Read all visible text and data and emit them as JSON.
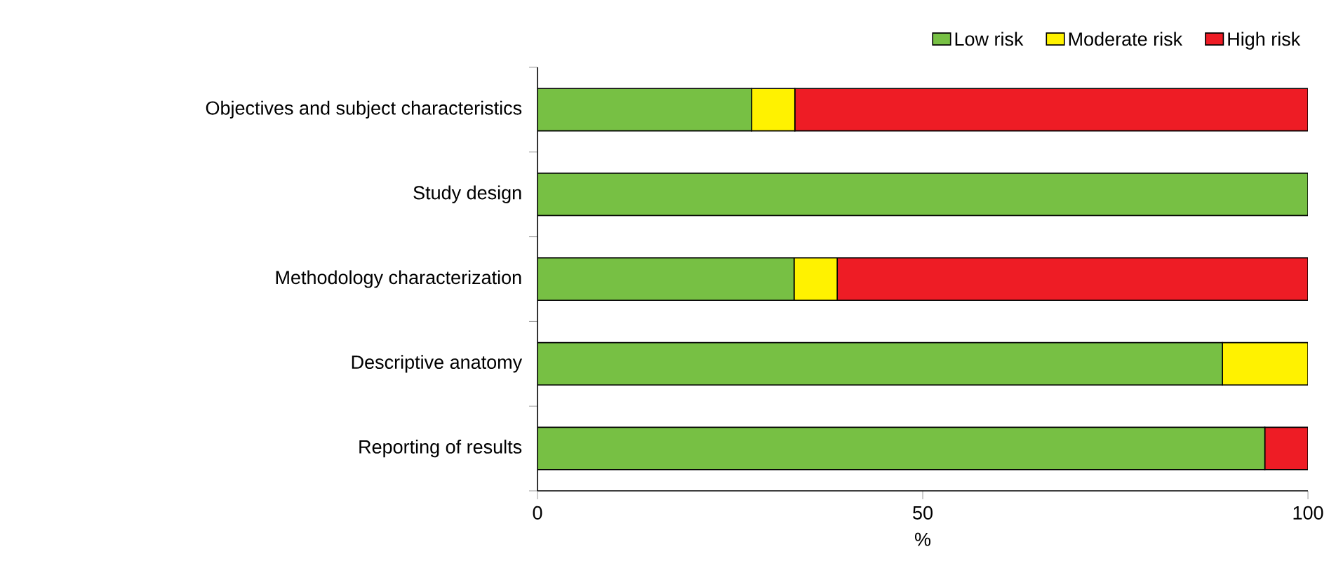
{
  "chart_data": {
    "type": "bar",
    "orientation": "horizontal",
    "stacked": true,
    "xlabel": "%",
    "categories": [
      "Objectives and subject characteristics",
      "Study design",
      "Methodology characterization",
      "Descriptive anatomy",
      "Reporting of results"
    ],
    "series": [
      {
        "name": "Low risk",
        "color": "#77c044",
        "values": [
          27.8,
          100,
          33.3,
          88.9,
          94.4
        ]
      },
      {
        "name": "Moderate risk",
        "color": "#fff200",
        "values": [
          5.6,
          0,
          5.6,
          11.1,
          0
        ]
      },
      {
        "name": "High risk",
        "color": "#ee1c25",
        "values": [
          66.6,
          0,
          61.1,
          0,
          5.6
        ]
      }
    ],
    "xlim": [
      0,
      100
    ],
    "xticks": [
      0,
      50,
      100
    ],
    "legend": "top right",
    "grid": false
  }
}
